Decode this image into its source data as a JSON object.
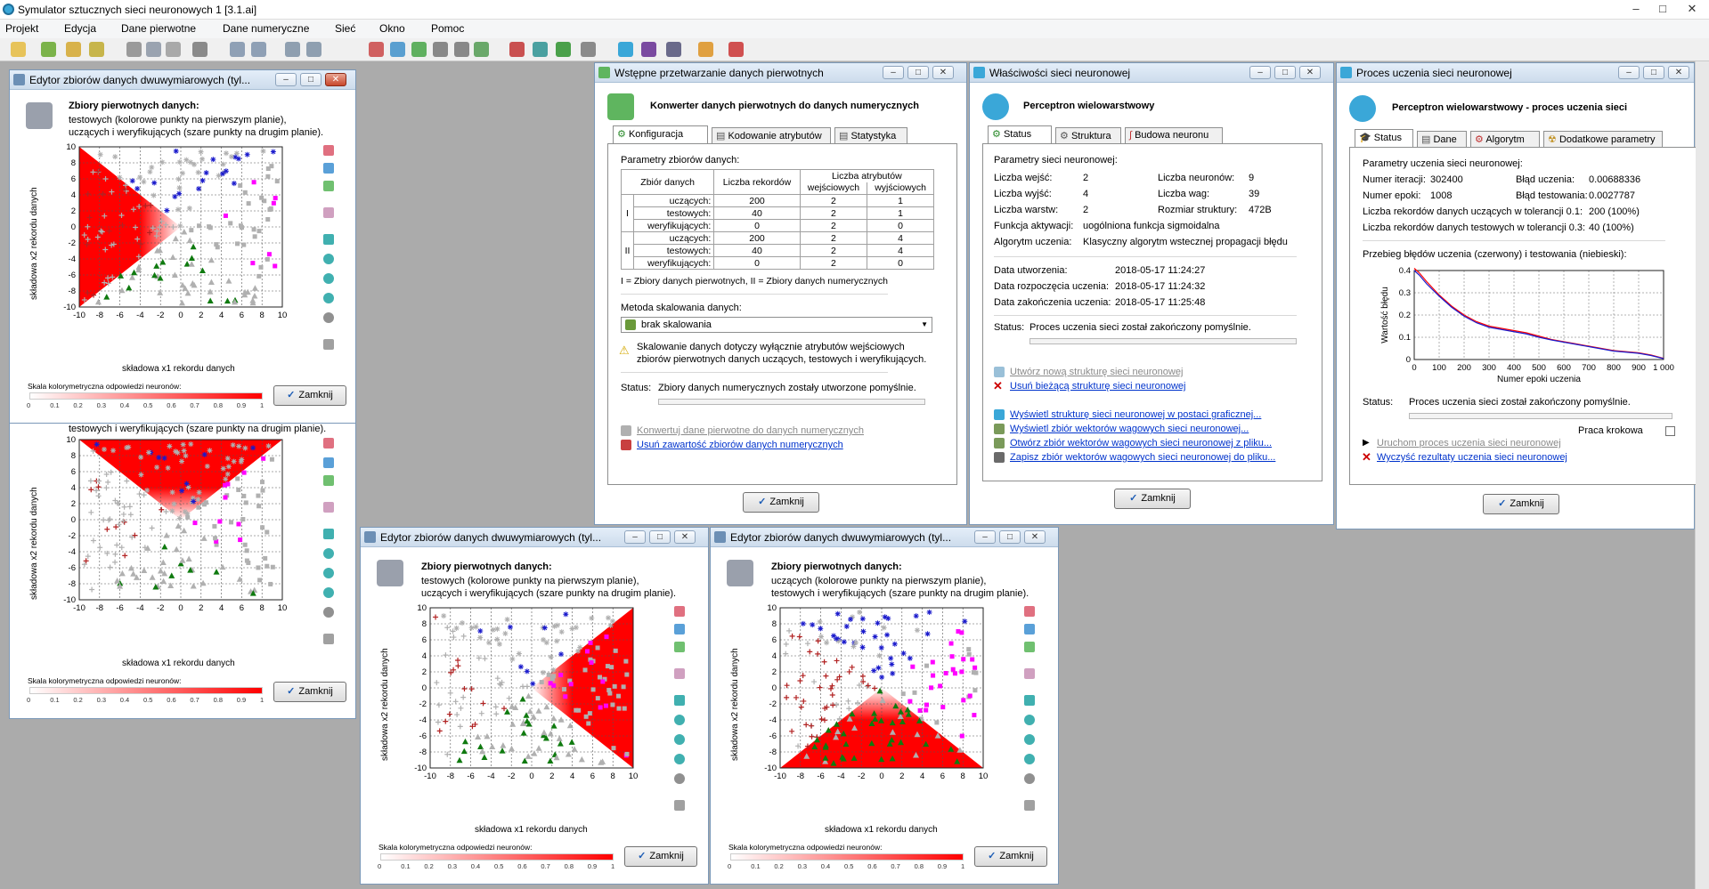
{
  "app": {
    "title": "Symulator sztucznych sieci neuronowych 1 [3.1.ai]",
    "window_buttons": [
      "–",
      "□",
      "✕"
    ]
  },
  "menu": [
    "Projekt",
    "Edycja",
    "Dane pierwotne",
    "Dane numeryczne",
    "Sieć",
    "Okno",
    "Pomoc"
  ],
  "colors": {
    "accent_red": "#ff0000",
    "blue_points": "#1a1acc",
    "green_points": "#0f7a0f",
    "magenta_points": "#ff00ff",
    "darkred_points": "#b22222",
    "gray_points": "#b0b0b0",
    "link": "#0033cc"
  },
  "editor": {
    "title": "Edytor zbiorów danych dwuwymiarowych (tyl...",
    "header_bold": "Zbiory pierwotnych danych:",
    "line_test_first": "testowych (kolorowe punkty na pierwszym planie),",
    "line_train_second": "uczących i weryfikujących (szare punkty na drugim planie).",
    "line_train_first": "uczących (kolorowe punkty na pierwszym planie),",
    "line_test_second": "testowych i weryfikujących (szare punkty na drugim planie).",
    "x_label": "składowa x1 rekordu danych",
    "y_label": "składowa x2 rekordu danych",
    "ticks": [
      "-10",
      "-8",
      "-6",
      "-4",
      "-2",
      "0",
      "2",
      "4",
      "6",
      "8",
      "10"
    ],
    "y_ticks": [
      "10",
      "8",
      "6",
      "4",
      "2",
      "0",
      "-2",
      "-4",
      "-6",
      "-8",
      "-10"
    ],
    "scale_label": "Skala kolorymetryczna odpowiedzi neuronów:",
    "scale_ticks": [
      "0",
      "0.1",
      "0.2",
      "0.3",
      "0.4",
      "0.5",
      "0.6",
      "0.7",
      "0.8",
      "0.9",
      "1"
    ],
    "close_label": "Zamknij"
  },
  "chart_data": [
    {
      "type": "scatter",
      "title": "",
      "xlabel": "składowa x1 rekordu danych",
      "ylabel": "składowa x2 rekordu danych",
      "xlim": [
        -10,
        10
      ],
      "ylim": [
        -10,
        10
      ],
      "region": "left triangle",
      "grid": true
    },
    {
      "type": "scatter",
      "title": "",
      "xlabel": "składowa x1 rekordu danych",
      "ylabel": "składowa x2 rekordu danych",
      "xlim": [
        -10,
        10
      ],
      "ylim": [
        -10,
        10
      ],
      "region": "top triangle",
      "grid": true
    },
    {
      "type": "scatter",
      "title": "",
      "xlabel": "składowa x1 rekordu danych",
      "ylabel": "składowa x2 rekordu danych",
      "xlim": [
        -10,
        10
      ],
      "ylim": [
        -10,
        10
      ],
      "region": "right triangle",
      "grid": true
    },
    {
      "type": "scatter",
      "title": "",
      "xlabel": "składowa x1 rekordu danych",
      "ylabel": "składowa x2 rekordu danych",
      "xlim": [
        -10,
        10
      ],
      "ylim": [
        -10,
        10
      ],
      "region": "bottom triangle",
      "grid": true
    },
    {
      "type": "line",
      "title": "",
      "xlabel": "Numer epoki uczenia",
      "ylabel": "Wartość błędu",
      "xlim": [
        0,
        1000
      ],
      "ylim": [
        0,
        0.4
      ],
      "x_ticks": [
        "0",
        "100",
        "200",
        "300",
        "400",
        "500",
        "600",
        "700",
        "800",
        "900",
        "1 000"
      ],
      "y_ticks": [
        "0.4",
        "0.3",
        "0.2",
        "0.1",
        "0"
      ],
      "series": [
        {
          "name": "",
          "color": "#ff0000",
          "x": [
            0,
            20,
            50,
            100,
            150,
            200,
            250,
            300,
            350,
            400,
            450,
            500,
            550,
            600,
            650,
            700,
            750,
            800,
            850,
            900,
            950,
            1000
          ],
          "values": [
            0.41,
            0.39,
            0.35,
            0.29,
            0.24,
            0.2,
            0.17,
            0.15,
            0.14,
            0.13,
            0.12,
            0.105,
            0.09,
            0.08,
            0.07,
            0.06,
            0.05,
            0.04,
            0.035,
            0.03,
            0.02,
            0.005
          ]
        },
        {
          "name": "",
          "color": "#1a1acc",
          "x": [
            0,
            20,
            50,
            100,
            150,
            200,
            250,
            300,
            350,
            400,
            450,
            500,
            550,
            600,
            650,
            700,
            750,
            800,
            850,
            900,
            950,
            1000
          ],
          "values": [
            0.4,
            0.38,
            0.34,
            0.285,
            0.235,
            0.195,
            0.165,
            0.145,
            0.135,
            0.125,
            0.115,
            0.1,
            0.088,
            0.078,
            0.068,
            0.058,
            0.048,
            0.038,
            0.033,
            0.028,
            0.018,
            0.004
          ]
        }
      ]
    }
  ],
  "preproc": {
    "title": "Wstępne przetwarzanie danych pierwotnych",
    "header": "Konwerter danych pierwotnych do danych numerycznych",
    "tabs": [
      "Konfiguracja",
      "Kodowanie atrybutów",
      "Statystyka"
    ],
    "params_label": "Parametry zbiorów danych:",
    "col_set": "Zbiór danych",
    "col_records": "Liczba rekordów",
    "col_attrs": "Liczba atrybutów",
    "col_in": "wejściowych",
    "col_out": "wyjściowych",
    "group1": "I",
    "group2": "II",
    "rows": [
      {
        "name": "uczących:",
        "rec": "200",
        "in": "2",
        "out": "1"
      },
      {
        "name": "testowych:",
        "rec": "40",
        "in": "2",
        "out": "1"
      },
      {
        "name": "weryfikujących:",
        "rec": "0",
        "in": "2",
        "out": "0"
      },
      {
        "name": "uczących:",
        "rec": "200",
        "in": "2",
        "out": "4"
      },
      {
        "name": "testowych:",
        "rec": "40",
        "in": "2",
        "out": "4"
      },
      {
        "name": "weryfikujących:",
        "rec": "0",
        "in": "2",
        "out": "0"
      }
    ],
    "legend": "I = Zbiory danych pierwotnych, II = Zbiory danych numerycznych",
    "scaling_label": "Metoda skalowania danych:",
    "scaling_value": "brak skalowania",
    "warning1": "Skalowanie danych dotyczy wyłącznie atrybutów wejściowych",
    "warning2": "zbiorów pierwotnych danych uczących, testowych i weryfikujących.",
    "status_label": "Status:",
    "status_text": "Zbiory danych numerycznych zostały utworzone pomyślnie.",
    "link_convert": "Konwertuj dane pierwotne do danych numerycznych",
    "link_delete": "Usuń zawartość zbiorów danych numerycznych",
    "close_label": "Zamknij"
  },
  "props": {
    "title": "Właściwości sieci neuronowej",
    "header": "Perceptron wielowarstwowy",
    "tabs": [
      "Status",
      "Struktura",
      "Budowa neuronu"
    ],
    "params_label": "Parametry sieci neuronowej:",
    "inputs_label": "Liczba wejść:",
    "inputs": "2",
    "outputs_label": "Liczba wyjść:",
    "outputs": "4",
    "layers_label": "Liczba warstw:",
    "layers": "2",
    "neurons_label": "Liczba neuronów:",
    "neurons": "9",
    "weights_label": "Liczba wag:",
    "weights": "39",
    "size_label": "Rozmiar struktury:",
    "size": "472B",
    "activation_label": "Funkcja aktywacji:",
    "activation": "uogólniona funkcja sigmoidalna",
    "algorithm_label": "Algorytm uczenia:",
    "algorithm": "Klasyczny algorytm wstecznej propagacji błędu",
    "created_label": "Data utworzenia:",
    "created": "2018-05-17 11:24:27",
    "train_start_label": "Data rozpoczęcia uczenia:",
    "train_start": "2018-05-17 11:24:32",
    "train_end_label": "Data zakończenia uczenia:",
    "train_end": "2018-05-17 11:25:48",
    "status_label": "Status:",
    "status_text": "Proces uczenia sieci został zakończony pomyślnie.",
    "link_new": "Utwórz nową strukturę sieci neuronowej",
    "link_delete": "Usuń bieżącą strukturę sieci neuronowej",
    "link_show": "Wyświetl strukturę sieci neuronowej w postaci graficznej...",
    "link_weights": "Wyświetl zbiór wektorów wagowych sieci neuronowej...",
    "link_open": "Otwórz zbiór wektorów wagowych sieci neuronowej z pliku...",
    "link_save": "Zapisz zbiór wektorów wagowych sieci neuronowej do pliku...",
    "close_label": "Zamknij"
  },
  "learn": {
    "title": "Proces uczenia sieci neuronowej",
    "header": "Perceptron wielowarstwowy - proces uczenia sieci",
    "tabs": [
      "Status",
      "Dane",
      "Algorytm",
      "Dodatkowe parametry"
    ],
    "params_label": "Parametry uczenia sieci neuronowej:",
    "iter_label": "Numer iteracji:",
    "iter": "302400",
    "epoch_label": "Numer epoki:",
    "epoch": "1008",
    "train_err_label": "Błąd uczenia:",
    "train_err": "0.00688336",
    "test_err_label": "Błąd testowania:",
    "test_err": "0.0027787",
    "tol_train_label": "Liczba rekordów danych uczących w tolerancji 0.1:",
    "tol_train": "200 (100%)",
    "tol_test_label": "Liczba rekordów danych testowych w tolerancji 0.3:",
    "tol_test": "40 (100%)",
    "chart_label": "Przebieg błędów uczenia (czerwony) i testowania (niebieski):",
    "status_label": "Status:",
    "status_text": "Proces uczenia sieci został zakończony pomyślnie.",
    "step_label": "Praca krokowa",
    "link_run": "Uruchom proces uczenia sieci neuronowej",
    "link_clear": "Wyczyść rezultaty uczenia sieci neuronowej",
    "close_label": "Zamknij"
  }
}
